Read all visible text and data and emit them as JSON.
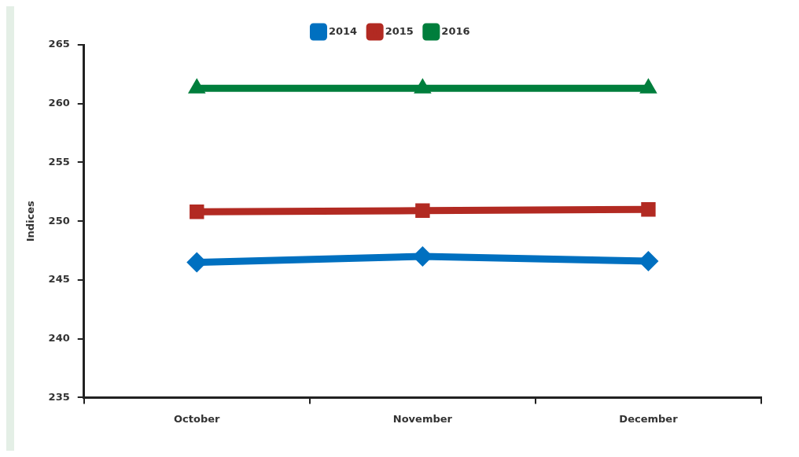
{
  "chart_data": {
    "type": "line",
    "ylabel": "Indices",
    "categories": [
      "October",
      "November",
      "December"
    ],
    "series": [
      {
        "name": "2014",
        "color": "#0070c0",
        "marker": "diamond",
        "values": [
          246.5,
          247.0,
          246.6
        ]
      },
      {
        "name": "2015",
        "color": "#b22a22",
        "marker": "square",
        "values": [
          250.8,
          250.9,
          251.0
        ]
      },
      {
        "name": "2016",
        "color": "#007e3c",
        "marker": "triangle",
        "values": [
          261.3,
          261.3,
          261.3
        ]
      }
    ],
    "ylim": [
      235,
      265
    ],
    "yticks": [
      235,
      240,
      245,
      250,
      255,
      260,
      265
    ],
    "grid": false,
    "legend": "top",
    "line_style": "solid"
  }
}
